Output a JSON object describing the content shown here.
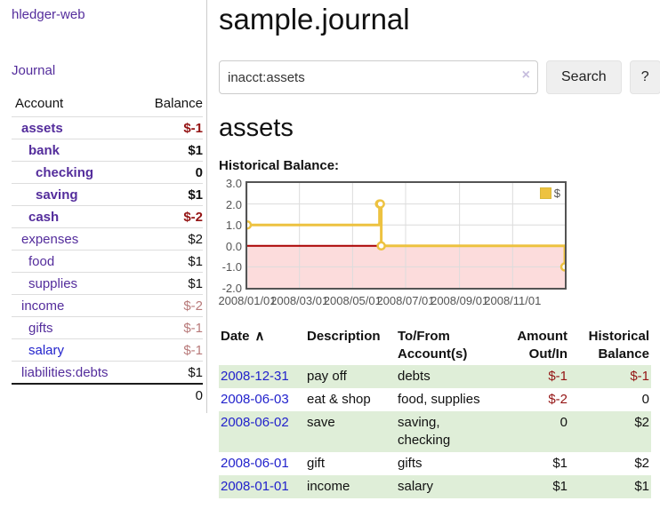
{
  "sidebar": {
    "brand": "hledger-web",
    "journal_label": "Journal",
    "accounts_table": {
      "headers": {
        "account": "Account",
        "balance": "Balance"
      },
      "rows": [
        {
          "name": "assets",
          "depth": 1,
          "bold": true,
          "balance": "$-1",
          "neg": "strong"
        },
        {
          "name": "bank",
          "depth": 2,
          "bold": true,
          "balance": "$1"
        },
        {
          "name": "checking",
          "depth": 3,
          "bold": true,
          "balance": "0"
        },
        {
          "name": "saving",
          "depth": 3,
          "bold": true,
          "balance": "$1"
        },
        {
          "name": "cash",
          "depth": 2,
          "bold": true,
          "balance": "$-2",
          "neg": "strong"
        },
        {
          "name": "expenses",
          "depth": 1,
          "bold": false,
          "balance": "$2"
        },
        {
          "name": "food",
          "depth": 2,
          "bold": false,
          "balance": "$1"
        },
        {
          "name": "supplies",
          "depth": 2,
          "bold": false,
          "balance": "$1"
        },
        {
          "name": "income",
          "depth": 1,
          "bold": false,
          "balance": "$-2",
          "neg": "soft"
        },
        {
          "name": "gifts",
          "depth": 2,
          "bold": false,
          "balance": "$-1",
          "neg": "soft"
        },
        {
          "name": "salary",
          "depth": 2,
          "bold": false,
          "balance": "$-1",
          "neg": "soft",
          "link_color": "blue"
        },
        {
          "name": "liabilities:debts",
          "depth": 1,
          "bold": false,
          "balance": "$1"
        }
      ],
      "total": "0"
    }
  },
  "header": {
    "title": "sample.journal"
  },
  "search": {
    "value": "inacct:assets",
    "clear_icon": "×",
    "button_label": "Search",
    "help_label": "?"
  },
  "account_page": {
    "heading": "assets",
    "chart_label": "Historical Balance:"
  },
  "chart_data": {
    "type": "line",
    "title": "Historical Balance",
    "steps": true,
    "series": [
      {
        "name": "$",
        "color": "#edc240",
        "points": [
          [
            "2008-01-01",
            1
          ],
          [
            "2008-06-01",
            2
          ],
          [
            "2008-06-02",
            2
          ],
          [
            "2008-06-03",
            0
          ],
          [
            "2008-12-31",
            -1
          ]
        ]
      }
    ],
    "x_ticks": [
      "2008/01/01",
      "2008/03/01",
      "2008/05/01",
      "2008/07/01",
      "2008/09/01",
      "2008/11/01"
    ],
    "y_ticks": [
      "3.0",
      "2.0",
      "1.0",
      "0.0",
      "-1.0",
      "-2.0"
    ],
    "xlim": [
      "2008-01-01",
      "2008-12-31"
    ],
    "ylim": [
      -2,
      3
    ],
    "grid": true,
    "legend_position": "top-right",
    "negative_region_fill": "#fcdcdc",
    "zero_line_color": "#aa0000"
  },
  "register_table": {
    "columns": [
      {
        "label": "Date",
        "sort_icon": "∧",
        "align": "left"
      },
      {
        "label": "Description",
        "align": "left"
      },
      {
        "label": "To/From Account(s)",
        "align": "left"
      },
      {
        "label": "Amount Out/In",
        "align": "right"
      },
      {
        "label": "Historical Balance",
        "align": "right"
      }
    ],
    "rows": [
      {
        "date": "2008-12-31",
        "description": "pay off",
        "accounts": "debts",
        "amount": "$-1",
        "balance": "$-1",
        "amount_neg": true,
        "balance_neg": true,
        "stripe": true
      },
      {
        "date": "2008-06-03",
        "description": "eat & shop",
        "accounts": "food, supplies",
        "amount": "$-2",
        "balance": "0",
        "amount_neg": true,
        "balance_neg": false,
        "stripe": false
      },
      {
        "date": "2008-06-02",
        "description": "save",
        "accounts": "saving, checking",
        "amount": "0",
        "balance": "$2",
        "amount_neg": false,
        "balance_neg": false,
        "stripe": true
      },
      {
        "date": "2008-06-01",
        "description": "gift",
        "accounts": "gifts",
        "amount": "$1",
        "balance": "$2",
        "amount_neg": false,
        "balance_neg": false,
        "stripe": false
      },
      {
        "date": "2008-01-01",
        "description": "income",
        "accounts": "salary",
        "amount": "$1",
        "balance": "$1",
        "amount_neg": false,
        "balance_neg": false,
        "stripe": true
      }
    ]
  },
  "colors": {
    "link_purple": "#542d9c",
    "link_blue": "#2222cc",
    "negative_strong": "#941414",
    "negative_soft": "#b87a7a",
    "row_stripe": "#dfeed8",
    "series_gold": "#edc240",
    "negative_region": "#fcdcdc",
    "zero_line": "#aa0000"
  }
}
